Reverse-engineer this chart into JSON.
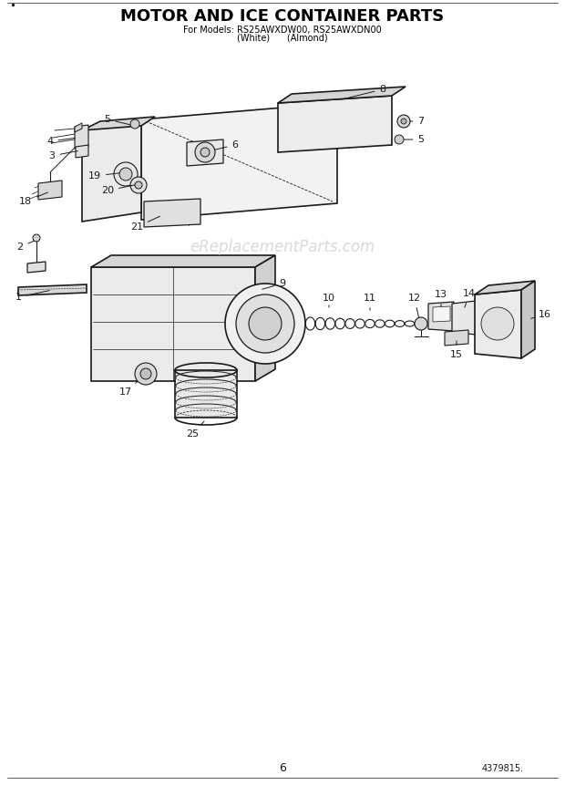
{
  "title": "MOTOR AND ICE CONTAINER PARTS",
  "subtitle1": "For Models: RS25AWXDW00, RS25AWXDN00",
  "subtitle2": "(White)      (Almond)",
  "page_number": "6",
  "part_number": "4379815.",
  "watermark": "eReplacementParts.com",
  "background_color": "#ffffff",
  "line_color": "#1a1a1a",
  "label_color": "#1a1a1a",
  "title_color": "#000000",
  "title_fontsize": 13,
  "subtitle_fontsize": 7,
  "label_fontsize": 8,
  "watermark_color": "#bbbbbb",
  "watermark_fontsize": 12
}
